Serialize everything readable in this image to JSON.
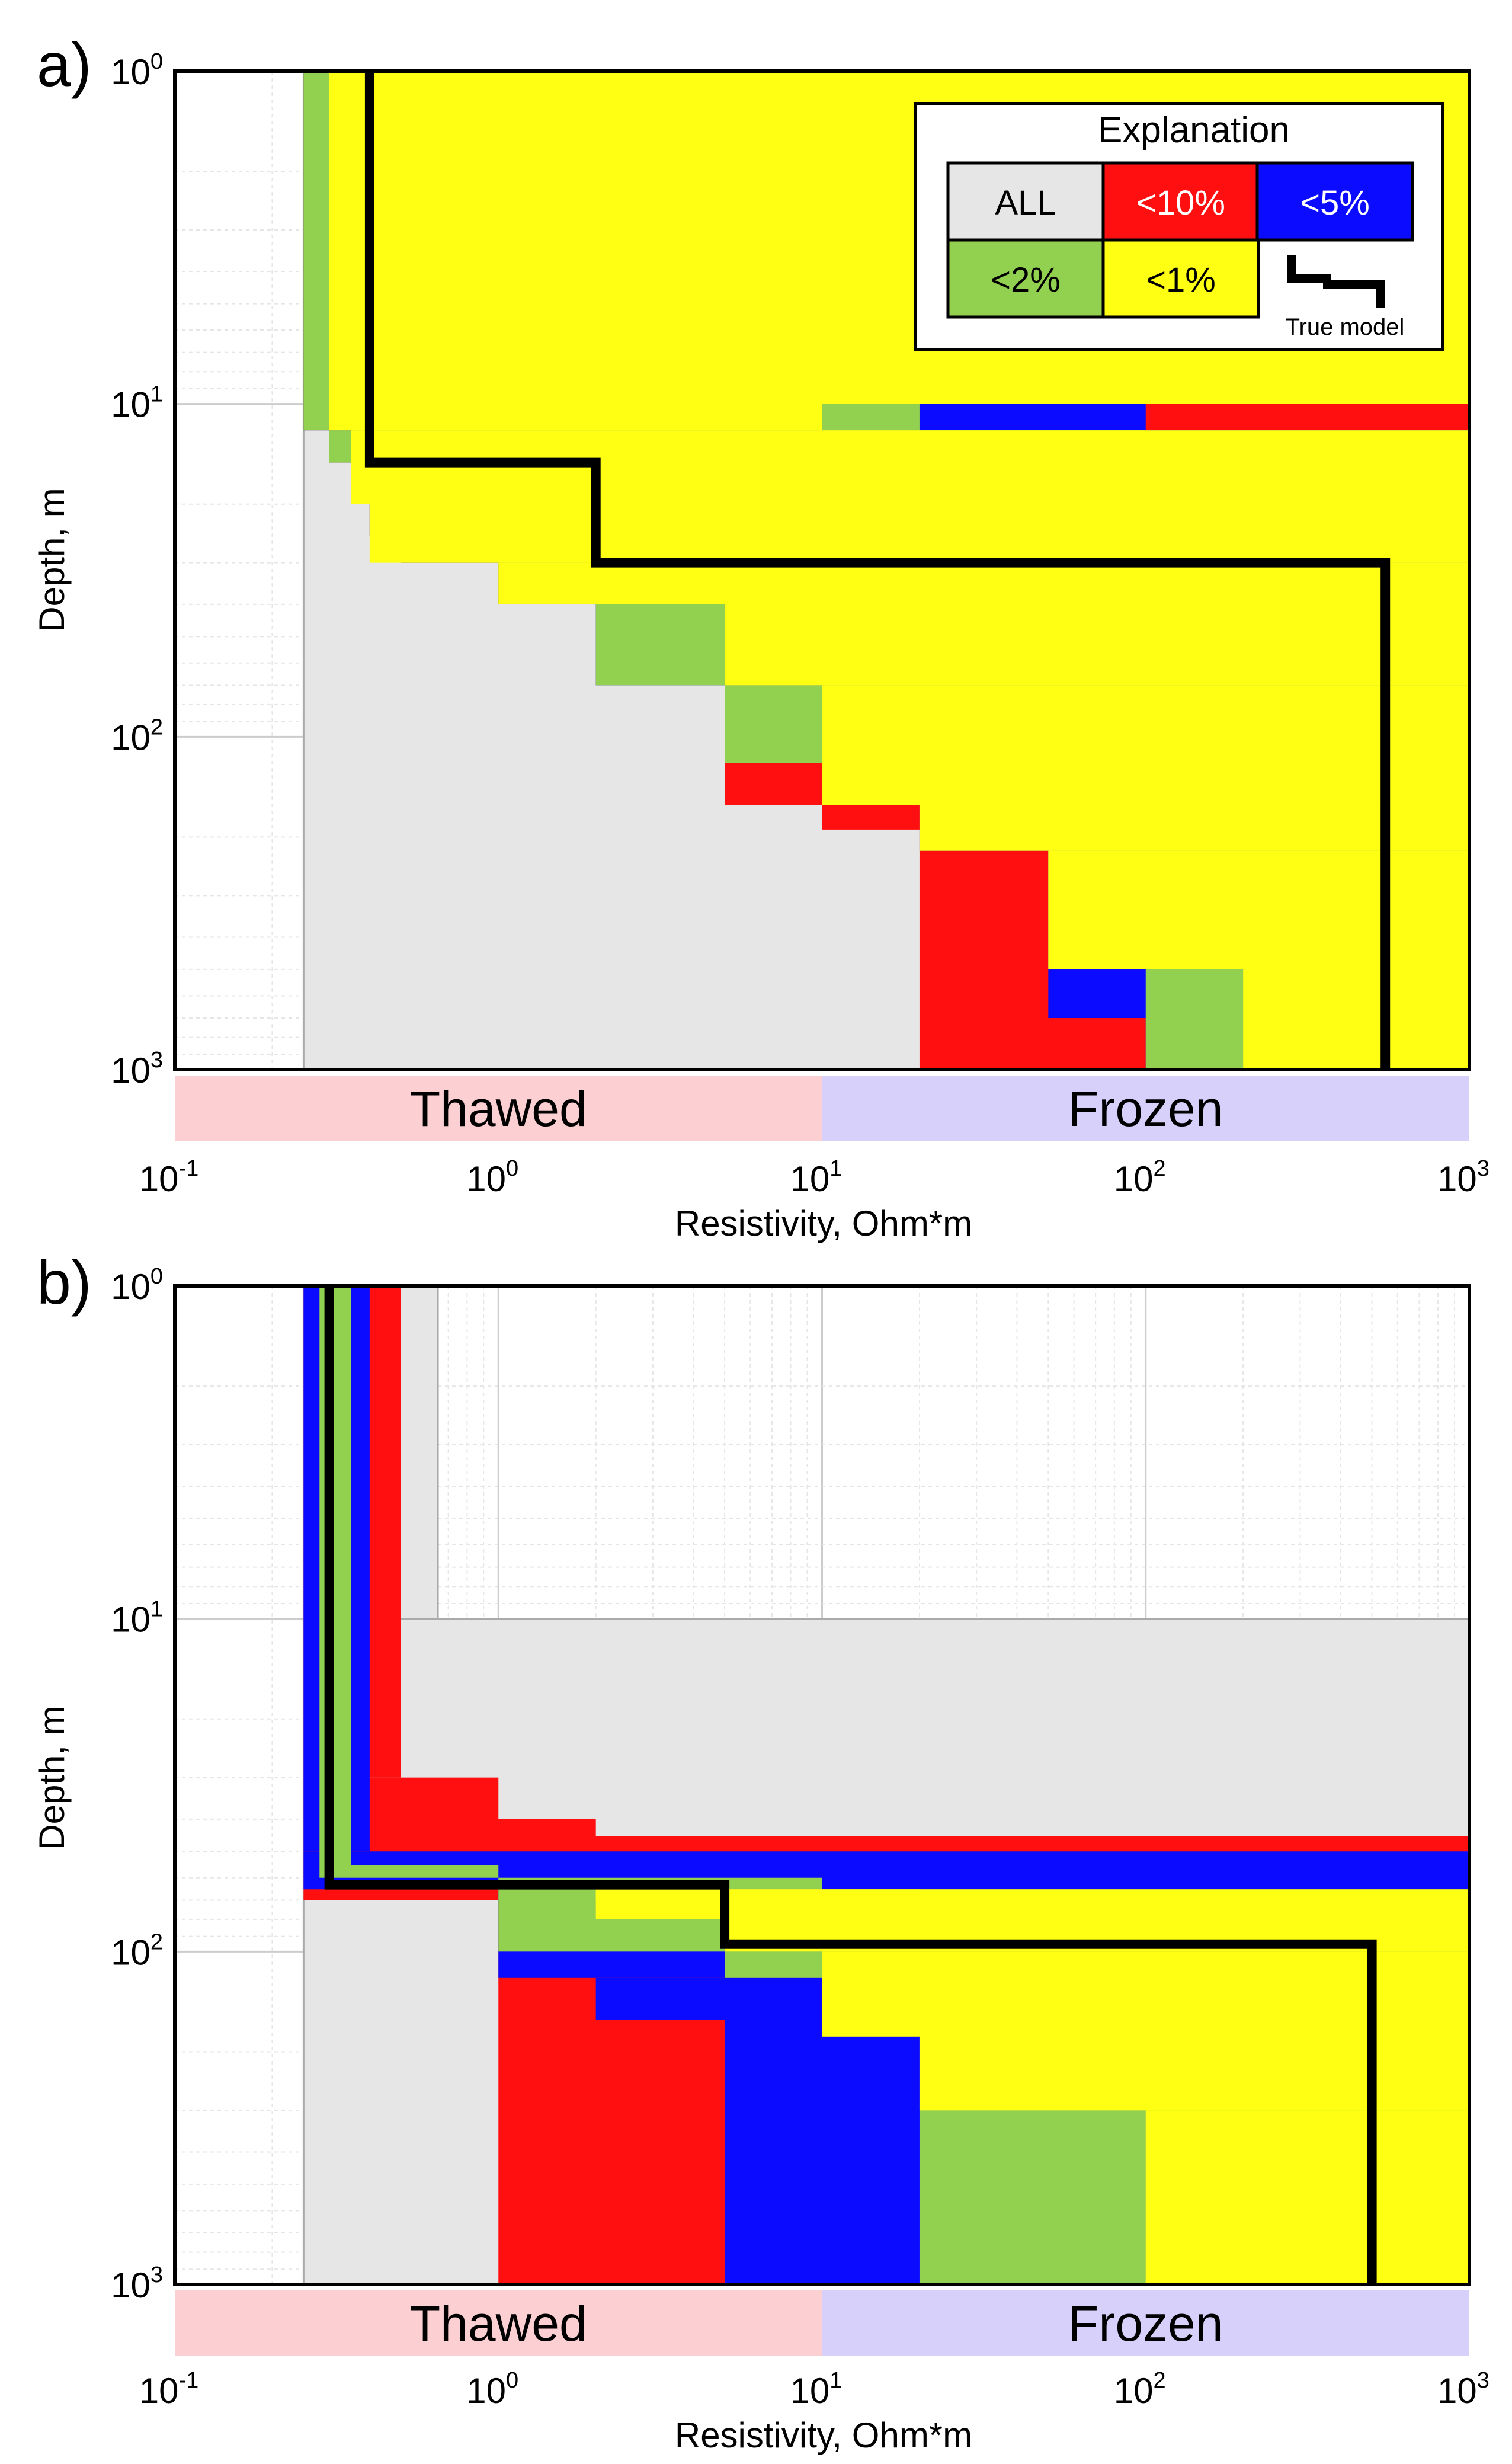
{
  "colors": {
    "ALL": "#e6e6e6",
    "<10%": "#ff0f0f",
    "<5%": "#0b0bff",
    "<2%": "#92d050",
    "<1%": "#ffff14",
    "true_model": "#000000",
    "thawed_band": "#fccfd2",
    "frozen_band": "#d6d0fb"
  },
  "legend": {
    "title": "Explanation",
    "items": [
      {
        "label": "ALL",
        "color_key": "ALL",
        "text_color": "#000000"
      },
      {
        "label": "<10%",
        "color_key": "<10%",
        "text_color": "#ffffff"
      },
      {
        "label": "<5%",
        "color_key": "<5%",
        "text_color": "#ffffff"
      },
      {
        "label": "<2%",
        "color_key": "<2%",
        "text_color": "#000000"
      },
      {
        "label": "<1%",
        "color_key": "<1%",
        "text_color": "#000000"
      }
    ],
    "true_model_label": "True model"
  },
  "chart_data": [
    {
      "panel": "a)",
      "type": "step-envelope",
      "xlabel": "Resistivity, Ohm*m",
      "ylabel": "Depth, m",
      "xscale": "log",
      "yscale": "log",
      "xlim": [
        0.1,
        1000
      ],
      "ylim": [
        1,
        1000
      ],
      "y_inverted": true,
      "x_ticks": [
        {
          "base": "10",
          "exp": "-1"
        },
        {
          "base": "10",
          "exp": "0"
        },
        {
          "base": "10",
          "exp": "1"
        },
        {
          "base": "10",
          "exp": "2"
        },
        {
          "base": "10",
          "exp": "3"
        }
      ],
      "y_ticks": [
        {
          "base": "10",
          "exp": "0"
        },
        {
          "base": "10",
          "exp": "1"
        },
        {
          "base": "10",
          "exp": "2"
        },
        {
          "base": "10",
          "exp": "3"
        }
      ],
      "bands": [
        {
          "label": "Thawed",
          "xrange": [
            0.1,
            10
          ],
          "color_key": "thawed_band"
        },
        {
          "label": "Frozen",
          "xrange": [
            10,
            1000
          ],
          "color_key": "frozen_band"
        }
      ],
      "true_model": [
        [
          0.4,
          1
        ],
        [
          0.4,
          15
        ],
        [
          2,
          15
        ],
        [
          2,
          30
        ],
        [
          550,
          30
        ],
        [
          550,
          1000
        ]
      ],
      "envelopes": [
        {
          "key": "ALL",
          "rects": [
            [
              0.25,
              1,
              1000,
              1000
            ]
          ]
        },
        {
          "key": "<10%",
          "rects": [
            [
              0.25,
              1,
              1000,
              10
            ],
            [
              0.25,
              10,
              1000,
              12
            ],
            [
              0.3,
              12,
              1000,
              15
            ],
            [
              0.35,
              15,
              1000,
              20
            ],
            [
              0.4,
              20,
              1000,
              25
            ],
            [
              0.5,
              25,
              1000,
              30
            ],
            [
              1,
              30,
              1000,
              40
            ],
            [
              2,
              40,
              1000,
              70
            ],
            [
              5,
              70,
              1000,
              160
            ],
            [
              10,
              160,
              1000,
              190
            ],
            [
              20,
              190,
              1000,
              1000
            ]
          ]
        },
        {
          "key": "<5%",
          "rects": [
            [
              0.25,
              1,
              1000,
              10
            ],
            [
              0.25,
              10,
              100,
              12
            ],
            [
              0.3,
              12,
              1000,
              15
            ],
            [
              0.35,
              15,
              1000,
              20
            ],
            [
              0.4,
              20,
              1000,
              25
            ],
            [
              0.5,
              25,
              1000,
              30
            ],
            [
              1,
              30,
              1000,
              40
            ],
            [
              2,
              40,
              1000,
              70
            ],
            [
              5,
              70,
              1000,
              120
            ],
            [
              10,
              120,
              1000,
              160
            ],
            [
              20,
              160,
              1000,
              220
            ],
            [
              50,
              220,
              1000,
              700
            ],
            [
              100,
              700,
              1000,
              1000
            ]
          ]
        },
        {
          "key": "<2%",
          "rects": [
            [
              0.25,
              1,
              1000,
              10
            ],
            [
              0.25,
              10,
              20,
              12
            ],
            [
              0.3,
              12,
              100,
              15
            ],
            [
              0.35,
              15,
              200,
              20
            ],
            [
              0.4,
              20,
              200,
              25
            ],
            [
              0.5,
              25,
              1000,
              30
            ],
            [
              1,
              30,
              1000,
              40
            ],
            [
              2,
              40,
              1000,
              70
            ],
            [
              5,
              70,
              1000,
              120
            ],
            [
              10,
              120,
              1000,
              160
            ],
            [
              20,
              160,
              1000,
              220
            ],
            [
              50,
              220,
              1000,
              500
            ],
            [
              100,
              500,
              1000,
              1000
            ]
          ]
        },
        {
          "key": "<1%",
          "rects": [
            [
              0.3,
              1,
              1000,
              10
            ],
            [
              0.3,
              10,
              10,
              12
            ],
            [
              0.35,
              12,
              1000,
              20
            ],
            [
              0.4,
              20,
              1000,
              30
            ],
            [
              1,
              30,
              1000,
              40
            ],
            [
              5,
              40,
              1000,
              70
            ],
            [
              10,
              70,
              1000,
              160
            ],
            [
              20,
              160,
              1000,
              220
            ],
            [
              50,
              220,
              1000,
              500
            ],
            [
              200,
              500,
              1000,
              1000
            ]
          ]
        }
      ]
    },
    {
      "panel": "b)",
      "type": "step-envelope",
      "xlabel": "Resistivity, Ohm*m",
      "ylabel": "Depth, m",
      "xscale": "log",
      "yscale": "log",
      "xlim": [
        0.1,
        1000
      ],
      "ylim": [
        1,
        1000
      ],
      "y_inverted": true,
      "x_ticks": [
        {
          "base": "10",
          "exp": "-1"
        },
        {
          "base": "10",
          "exp": "0"
        },
        {
          "base": "10",
          "exp": "1"
        },
        {
          "base": "10",
          "exp": "2"
        },
        {
          "base": "10",
          "exp": "3"
        }
      ],
      "y_ticks": [
        {
          "base": "10",
          "exp": "0"
        },
        {
          "base": "10",
          "exp": "1"
        },
        {
          "base": "10",
          "exp": "2"
        },
        {
          "base": "10",
          "exp": "3"
        }
      ],
      "bands": [
        {
          "label": "Thawed",
          "xrange": [
            0.1,
            10
          ],
          "color_key": "thawed_band"
        },
        {
          "label": "Frozen",
          "xrange": [
            10,
            1000
          ],
          "color_key": "frozen_band"
        }
      ],
      "true_model": [
        [
          0.3,
          1
        ],
        [
          0.3,
          63
        ],
        [
          5,
          63
        ],
        [
          5,
          95
        ],
        [
          500,
          95
        ],
        [
          500,
          1000
        ]
      ],
      "envelopes": [
        {
          "key": "ALL",
          "rects": [
            [
              0.25,
              1,
              0.65,
              10
            ],
            [
              0.25,
              10,
              1000,
              1000
            ]
          ]
        },
        {
          "key": "<10%",
          "rects": [
            [
              0.25,
              1,
              0.5,
              30
            ],
            [
              0.25,
              30,
              1,
              40
            ],
            [
              0.25,
              40,
              2,
              45
            ],
            [
              0.25,
              45,
              1000,
              70
            ],
            [
              1,
              70,
              1000,
              1000
            ]
          ]
        },
        {
          "key": "<5%",
          "rects": [
            [
              0.25,
              1,
              0.4,
              50
            ],
            [
              0.25,
              50,
              1000,
              65
            ],
            [
              1,
              65,
              1000,
              120
            ],
            [
              2,
              120,
              1000,
              160
            ],
            [
              5,
              160,
              1000,
              1000
            ]
          ]
        },
        {
          "key": "<2%",
          "rects": [
            [
              0.28,
              1,
              0.35,
              55
            ],
            [
              0.28,
              55,
              1,
              60
            ],
            [
              1,
              60,
              10,
              65
            ],
            [
              1,
              65,
              1000,
              80
            ],
            [
              1,
              80,
              1000,
              100
            ],
            [
              5,
              100,
              1000,
              120
            ],
            [
              10,
              120,
              1000,
              180
            ],
            [
              20,
              180,
              1000,
              1000
            ]
          ]
        },
        {
          "key": "<1%",
          "rects": [
            [
              2,
              65,
              1000,
              80
            ],
            [
              2,
              65,
              20,
              70
            ],
            [
              5,
              80,
              1000,
              100
            ],
            [
              10,
              100,
              1000,
              180
            ],
            [
              20,
              120,
              1000,
              300
            ],
            [
              100,
              300,
              1000,
              1000
            ]
          ]
        }
      ]
    }
  ]
}
